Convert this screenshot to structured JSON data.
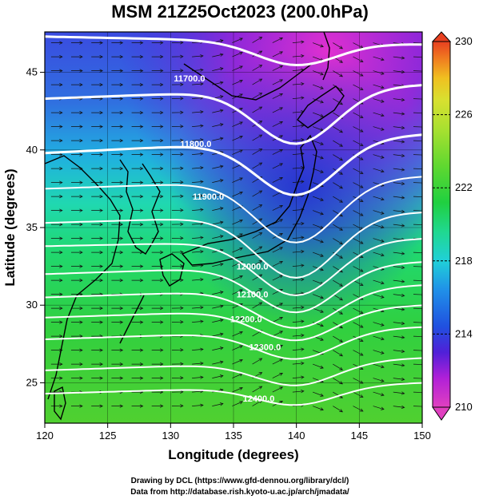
{
  "title": "MSM 21Z25Oct2023 (200.0hPa)",
  "xlabel": "Longitude (degrees)",
  "ylabel": "Latitude  (degrees)",
  "xticks": [
    "120",
    "125",
    "130",
    "135",
    "140",
    "145",
    "150"
  ],
  "yticks": [
    "25",
    "30",
    "35",
    "40",
    "45"
  ],
  "colorbar": {
    "min": 210,
    "max": 230,
    "ticks": [
      "210",
      "214",
      "218",
      "222",
      "226",
      "230"
    ],
    "colors": [
      "#e040c0",
      "#b020d8",
      "#5020d8",
      "#2050e0",
      "#2090e8",
      "#20d0d8",
      "#20d890",
      "#20d040",
      "#60d830",
      "#a8e030",
      "#d8e030",
      "#f0c020",
      "#f08020",
      "#e84020"
    ]
  },
  "contours": [
    {
      "label": "11700.0"
    },
    {
      "label": "11800.0"
    },
    {
      "label": "11900.0"
    },
    {
      "label": "12000.0"
    },
    {
      "label": "12100.0"
    },
    {
      "label": "12200.0"
    },
    {
      "label": "12300.0"
    },
    {
      "label": "12400.0"
    }
  ],
  "footer": {
    "line1": "Drawing by DCL (https://www.gfd-dennou.org/library/dcl/)",
    "line2": "Data from http://database.rish.kyoto-u.ac.jp/arch/jmadata/"
  }
}
